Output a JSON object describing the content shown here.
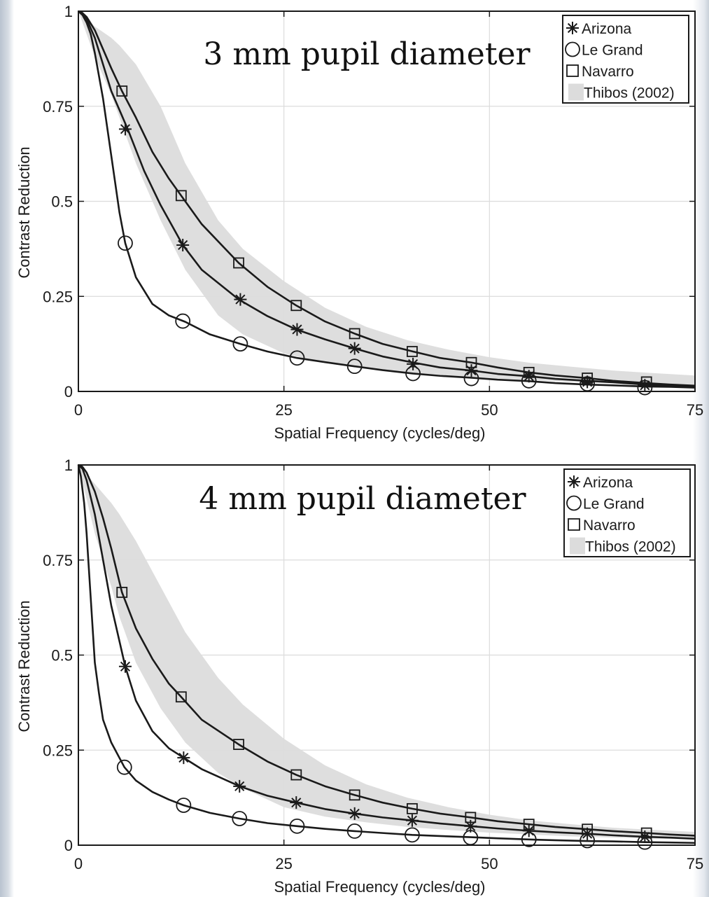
{
  "chart_data": [
    {
      "type": "line",
      "title": "3 mm pupil diameter",
      "xlabel": "Spatial Frequency (cycles/deg)",
      "ylabel": "Contrast Reduction",
      "xlim": [
        0,
        75
      ],
      "ylim": [
        0,
        1
      ],
      "xticks": [
        "0",
        "25",
        "50",
        "75"
      ],
      "yticks": [
        "0",
        "0.25",
        "0.5",
        "0.75",
        "1"
      ],
      "grid": true,
      "legend_position": "top-right",
      "legend": [
        "Arizona",
        "Le Grand",
        "Navarro",
        "Thibos (2002)"
      ],
      "series": [
        {
          "name": "Arizona",
          "marker": "star",
          "x": [
            0,
            0.5,
            1,
            2,
            3,
            4,
            5,
            6,
            8,
            10,
            12.7,
            15,
            19.5,
            23,
            26.5,
            30,
            33.6,
            37,
            40.7,
            44,
            47.8,
            51,
            54.8,
            58,
            61.9,
            65,
            69,
            72,
            75
          ],
          "y": [
            1,
            0.995,
            0.98,
            0.93,
            0.86,
            0.79,
            0.74,
            0.69,
            0.58,
            0.49,
            0.385,
            0.32,
            0.242,
            0.198,
            0.163,
            0.137,
            0.113,
            0.092,
            0.076,
            0.063,
            0.055,
            0.046,
            0.04,
            0.033,
            0.028,
            0.024,
            0.018,
            0.015,
            0.013
          ],
          "markers_x": [
            5.7,
            12.7,
            19.7,
            26.6,
            33.6,
            40.7,
            47.8,
            54.8,
            61.9,
            68.9
          ],
          "markers_y": [
            0.69,
            0.385,
            0.242,
            0.163,
            0.113,
            0.072,
            0.055,
            0.04,
            0.025,
            0.016
          ]
        },
        {
          "name": "Le Grand",
          "marker": "circle",
          "x": [
            0,
            0.5,
            1,
            1.5,
            2,
            3,
            4,
            5,
            5.7,
            7,
            9,
            11,
            13,
            16,
            19.7,
            23,
            26.6,
            30,
            33.6,
            37,
            40.7,
            44,
            47.8,
            51,
            54.8,
            58,
            61.9,
            65,
            68.9,
            72,
            75
          ],
          "y": [
            1,
            0.99,
            0.97,
            0.94,
            0.89,
            0.77,
            0.62,
            0.47,
            0.39,
            0.3,
            0.23,
            0.2,
            0.183,
            0.15,
            0.125,
            0.105,
            0.088,
            0.077,
            0.066,
            0.056,
            0.047,
            0.041,
            0.036,
            0.031,
            0.027,
            0.022,
            0.018,
            0.016,
            0.013,
            0.012,
            0.01
          ],
          "markers_x": [
            5.7,
            12.7,
            19.7,
            26.6,
            33.6,
            40.7,
            47.8,
            54.8,
            61.9,
            68.9
          ],
          "markers_y": [
            0.39,
            0.185,
            0.125,
            0.088,
            0.066,
            0.047,
            0.034,
            0.028,
            0.02,
            0.01
          ]
        },
        {
          "name": "Navarro",
          "marker": "square",
          "x": [
            0,
            0.5,
            1,
            2,
            3,
            4,
            5.3,
            7,
            9,
            11,
            12.5,
            15,
            19.5,
            23,
            26.5,
            30,
            33.6,
            37,
            40.7,
            44,
            47.8,
            51,
            54.8,
            58,
            61.9,
            65,
            69,
            72,
            75
          ],
          "y": [
            1,
            0.995,
            0.985,
            0.95,
            0.9,
            0.85,
            0.79,
            0.72,
            0.63,
            0.56,
            0.515,
            0.44,
            0.338,
            0.275,
            0.226,
            0.184,
            0.152,
            0.125,
            0.105,
            0.088,
            0.076,
            0.063,
            0.05,
            0.042,
            0.035,
            0.028,
            0.022,
            0.018,
            0.015
          ],
          "markers_x": [
            5.3,
            12.5,
            19.5,
            26.5,
            33.6,
            40.6,
            47.8,
            54.8,
            61.9,
            69.1
          ],
          "markers_y": [
            0.79,
            0.515,
            0.338,
            0.226,
            0.152,
            0.105,
            0.076,
            0.05,
            0.035,
            0.025
          ]
        }
      ],
      "band": {
        "name": "Thibos (2002)",
        "x": [
          0,
          2,
          4,
          5,
          7,
          10,
          13,
          17,
          20,
          25,
          30,
          35,
          40,
          45,
          50,
          55,
          60,
          65,
          70,
          75
        ],
        "upper": [
          1,
          0.96,
          0.93,
          0.91,
          0.86,
          0.75,
          0.6,
          0.45,
          0.375,
          0.29,
          0.22,
          0.17,
          0.135,
          0.11,
          0.09,
          0.075,
          0.065,
          0.055,
          0.048,
          0.042
        ],
        "lower": [
          1,
          0.88,
          0.78,
          0.72,
          0.6,
          0.45,
          0.32,
          0.2,
          0.15,
          0.1,
          0.075,
          0.06,
          0.05,
          0.042,
          0.035,
          0.03,
          0.025,
          0.021,
          0.018,
          0.015
        ]
      }
    },
    {
      "type": "line",
      "title": "4 mm pupil diameter",
      "xlabel": "Spatial Frequency (cycles/deg)",
      "ylabel": "Contrast Reduction",
      "xlim": [
        0,
        75
      ],
      "ylim": [
        0,
        1
      ],
      "xticks": [
        "0",
        "25",
        "50",
        "75"
      ],
      "yticks": [
        "0",
        "0.25",
        "0.5",
        "0.75",
        "1"
      ],
      "grid": true,
      "legend_position": "top-right",
      "legend": [
        "Arizona",
        "Le Grand",
        "Navarro",
        "Thibos (2002)"
      ],
      "series": [
        {
          "name": "Arizona",
          "marker": "star",
          "x": [
            0,
            0.5,
            1,
            2,
            3,
            4,
            5.7,
            7,
            9,
            11,
            12.8,
            15,
            19.6,
            23,
            26.5,
            30,
            33.6,
            37,
            40.6,
            44,
            47.7,
            51,
            54.8,
            58,
            61.9,
            65,
            69,
            72,
            75
          ],
          "y": [
            1,
            0.99,
            0.96,
            0.87,
            0.75,
            0.63,
            0.47,
            0.38,
            0.3,
            0.255,
            0.23,
            0.2,
            0.155,
            0.13,
            0.112,
            0.095,
            0.083,
            0.073,
            0.065,
            0.057,
            0.05,
            0.044,
            0.038,
            0.034,
            0.03,
            0.026,
            0.022,
            0.02,
            0.017
          ],
          "markers_x": [
            5.7,
            12.8,
            19.6,
            26.5,
            33.6,
            40.6,
            47.7,
            54.8,
            61.9,
            68.9
          ],
          "markers_y": [
            0.47,
            0.23,
            0.155,
            0.112,
            0.083,
            0.065,
            0.05,
            0.038,
            0.03,
            0.022
          ]
        },
        {
          "name": "Le Grand",
          "marker": "circle",
          "x": [
            0,
            0.3,
            0.7,
            1,
            1.5,
            2,
            2.5,
            3,
            4,
            5.6,
            7,
            9,
            11,
            12.8,
            16,
            19.6,
            23,
            26.6,
            30,
            33.6,
            37,
            40.6,
            44,
            47.7,
            51,
            54.8,
            58,
            61.9,
            65,
            69,
            72,
            75
          ],
          "y": [
            1,
            0.97,
            0.9,
            0.82,
            0.65,
            0.48,
            0.4,
            0.33,
            0.27,
            0.205,
            0.17,
            0.14,
            0.12,
            0.105,
            0.085,
            0.07,
            0.058,
            0.05,
            0.043,
            0.037,
            0.032,
            0.027,
            0.024,
            0.021,
            0.018,
            0.015,
            0.013,
            0.011,
            0.01,
            0.008,
            0.007,
            0.006
          ],
          "markers_x": [
            5.6,
            12.8,
            19.6,
            26.6,
            33.6,
            40.6,
            47.7,
            54.8,
            61.9,
            68.9
          ],
          "markers_y": [
            0.205,
            0.105,
            0.07,
            0.05,
            0.037,
            0.027,
            0.02,
            0.015,
            0.012,
            0.008
          ]
        },
        {
          "name": "Navarro",
          "marker": "square",
          "x": [
            0,
            0.5,
            1,
            2,
            3,
            4,
            5.3,
            7,
            9,
            11,
            12.5,
            15,
            19.5,
            23,
            26.5,
            30,
            33.6,
            37,
            40.6,
            44,
            47.7,
            51,
            54.8,
            58,
            61.9,
            65,
            69.1,
            72,
            75
          ],
          "y": [
            1,
            0.995,
            0.98,
            0.93,
            0.86,
            0.78,
            0.665,
            0.57,
            0.49,
            0.425,
            0.39,
            0.33,
            0.265,
            0.22,
            0.185,
            0.155,
            0.132,
            0.112,
            0.096,
            0.083,
            0.073,
            0.063,
            0.055,
            0.048,
            0.042,
            0.037,
            0.032,
            0.028,
            0.025
          ],
          "markers_x": [
            5.3,
            12.5,
            19.5,
            26.5,
            33.6,
            40.6,
            47.7,
            54.8,
            61.9,
            69.1
          ],
          "markers_y": [
            0.665,
            0.39,
            0.265,
            0.185,
            0.132,
            0.096,
            0.073,
            0.055,
            0.042,
            0.032
          ]
        }
      ],
      "band": {
        "name": "Thibos (2002)",
        "x": [
          0,
          2,
          4,
          5,
          7,
          10,
          13,
          17,
          20,
          25,
          30,
          35,
          40,
          45,
          50,
          55,
          60,
          65,
          70,
          75
        ],
        "upper": [
          1,
          0.95,
          0.9,
          0.87,
          0.8,
          0.68,
          0.56,
          0.44,
          0.37,
          0.28,
          0.21,
          0.16,
          0.125,
          0.1,
          0.08,
          0.065,
          0.055,
          0.046,
          0.04,
          0.035
        ],
        "lower": [
          1,
          0.82,
          0.68,
          0.6,
          0.48,
          0.36,
          0.27,
          0.19,
          0.15,
          0.1,
          0.075,
          0.06,
          0.048,
          0.04,
          0.033,
          0.028,
          0.023,
          0.02,
          0.017,
          0.015
        ]
      }
    }
  ]
}
